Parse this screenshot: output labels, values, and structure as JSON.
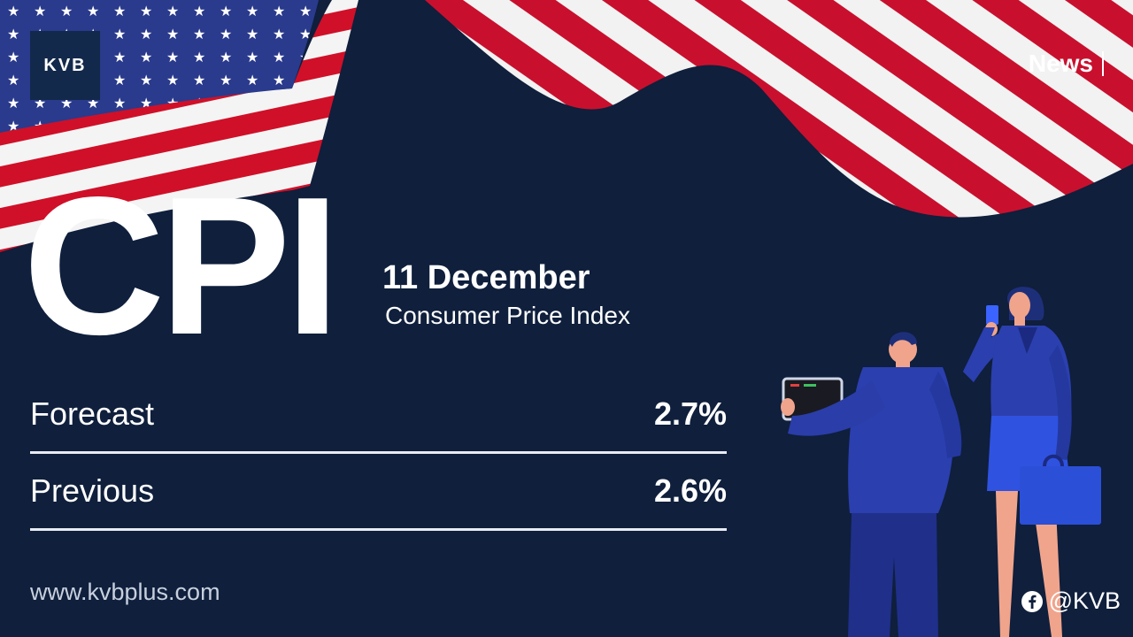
{
  "brand": {
    "logo_text": "KVB"
  },
  "header": {
    "news_label": "News"
  },
  "headline": {
    "title": "CPI",
    "date": "11 December",
    "subtitle": "Consumer Price Index"
  },
  "stats": [
    {
      "label": "Forecast",
      "value": "2.7%"
    },
    {
      "label": "Previous",
      "value": "2.6%"
    }
  ],
  "footer": {
    "website": "www.kvbplus.com",
    "social_handle": "@KVB",
    "social_icon": "facebook-icon"
  },
  "colors": {
    "background": "#0f1f3c",
    "flag_red": "#c8102e",
    "flag_blue": "#2a3a8c",
    "figure_blue": "#2b3fae",
    "text": "#ffffff"
  }
}
